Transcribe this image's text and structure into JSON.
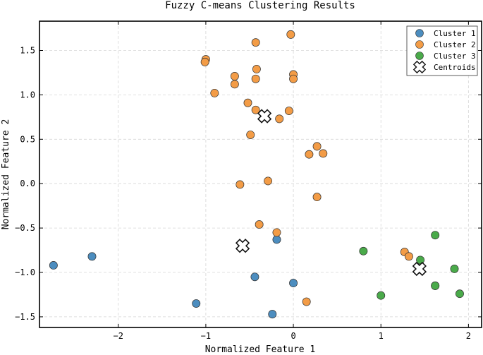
{
  "chart_data": {
    "type": "scatter",
    "title": "Fuzzy C-means Clustering Results",
    "xlabel": "Normalized Feature 1",
    "ylabel": "Normalized Feature 2",
    "xlim": [
      -2.9,
      2.15
    ],
    "ylim": [
      -1.62,
      1.83
    ],
    "xticks": [
      -2,
      -1,
      0,
      1,
      2
    ],
    "xtick_labels": [
      "−2",
      "−1",
      "0",
      "1",
      "2"
    ],
    "yticks": [
      -1.5,
      -1.0,
      -0.5,
      0.0,
      0.5,
      1.0,
      1.5
    ],
    "ytick_labels": [
      "−1.5",
      "−1.0",
      "−0.5",
      "0.0",
      "0.5",
      "1.0",
      "1.5"
    ],
    "grid": true,
    "legend_position": "top-right",
    "series": [
      {
        "name": "Cluster 1",
        "color": "#4c8dbf",
        "points": [
          {
            "x": -2.74,
            "y": -0.92
          },
          {
            "x": -2.3,
            "y": -0.82
          },
          {
            "x": -1.11,
            "y": -1.35
          },
          {
            "x": -0.44,
            "y": -1.05
          },
          {
            "x": -0.24,
            "y": -1.47
          },
          {
            "x": -0.19,
            "y": -0.63
          },
          {
            "x": 0.0,
            "y": -1.12
          }
        ]
      },
      {
        "name": "Cluster 2",
        "color": "#f39c46",
        "points": [
          {
            "x": -1.0,
            "y": 1.4
          },
          {
            "x": -1.01,
            "y": 1.37
          },
          {
            "x": -0.9,
            "y": 1.02
          },
          {
            "x": -0.67,
            "y": 1.21
          },
          {
            "x": -0.67,
            "y": 1.12
          },
          {
            "x": -0.43,
            "y": 1.59
          },
          {
            "x": -0.42,
            "y": 1.29
          },
          {
            "x": -0.43,
            "y": 1.18
          },
          {
            "x": -0.52,
            "y": 0.91
          },
          {
            "x": -0.43,
            "y": 0.83
          },
          {
            "x": -0.03,
            "y": 1.68
          },
          {
            "x": 0.0,
            "y": 1.23
          },
          {
            "x": 0.0,
            "y": 1.18
          },
          {
            "x": -0.05,
            "y": 0.82
          },
          {
            "x": -0.16,
            "y": 0.73
          },
          {
            "x": -0.49,
            "y": 0.55
          },
          {
            "x": 0.18,
            "y": 0.33
          },
          {
            "x": 0.27,
            "y": 0.42
          },
          {
            "x": 0.34,
            "y": 0.34
          },
          {
            "x": -0.61,
            "y": -0.01
          },
          {
            "x": -0.29,
            "y": 0.03
          },
          {
            "x": 0.27,
            "y": -0.15
          },
          {
            "x": -0.39,
            "y": -0.46
          },
          {
            "x": -0.19,
            "y": -0.55
          },
          {
            "x": 0.15,
            "y": -1.33
          },
          {
            "x": 1.27,
            "y": -0.77
          },
          {
            "x": 1.32,
            "y": -0.82
          }
        ]
      },
      {
        "name": "Cluster 3",
        "color": "#4aaa4a",
        "points": [
          {
            "x": 0.8,
            "y": -0.76
          },
          {
            "x": 1.0,
            "y": -1.26
          },
          {
            "x": 1.45,
            "y": -0.86
          },
          {
            "x": 1.62,
            "y": -0.58
          },
          {
            "x": 1.62,
            "y": -1.15
          },
          {
            "x": 1.62,
            "y": -1.15
          },
          {
            "x": 1.84,
            "y": -0.96
          },
          {
            "x": 1.9,
            "y": -1.24
          }
        ]
      }
    ],
    "centroids": {
      "name": "Centroids",
      "points": [
        {
          "x": -0.33,
          "y": 0.76
        },
        {
          "x": -0.58,
          "y": -0.7
        },
        {
          "x": 1.44,
          "y": -0.96
        }
      ]
    }
  }
}
